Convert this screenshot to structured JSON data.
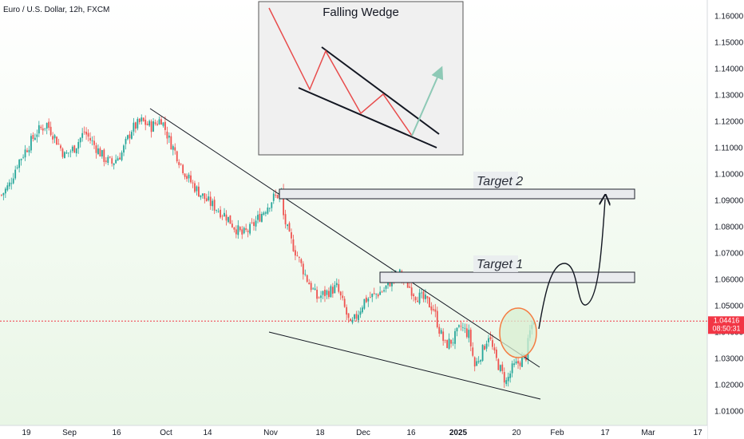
{
  "header": {
    "symbol_label": "Euro / U.S. Dollar, 12h, FXCM"
  },
  "colors": {
    "up": "#26a69a",
    "down": "#ef5350",
    "background_tint": "#eef7ec",
    "trendline": "#131722",
    "target_box_fill": "#e9ebee",
    "target_box_stroke": "#1e222d",
    "breakout_circle": "#f57c42",
    "breakout_fill": "#d8efd2",
    "price_line": "#f23645",
    "price_tag": "#f23645",
    "inset_bg": "#f0f0f0",
    "inset_zigzag": "#e84c4c",
    "inset_arrow": "#8ec9b6"
  },
  "chart_data": {
    "type": "candlestick",
    "title": "Euro / U.S. Dollar, 12h, FXCM",
    "ylim": [
      1.0,
      1.165
    ],
    "y_ticks": [
      "1.16000",
      "1.15000",
      "1.14000",
      "1.13000",
      "1.12000",
      "1.11000",
      "1.10000",
      "1.09000",
      "1.08000",
      "1.07000",
      "1.06000",
      "1.05000",
      "1.04000",
      "1.03000",
      "1.02000",
      "1.01000"
    ],
    "x_ticks": [
      {
        "label": "19",
        "bold": false
      },
      {
        "label": "Sep",
        "bold": false
      },
      {
        "label": "16",
        "bold": false
      },
      {
        "label": "Oct",
        "bold": false
      },
      {
        "label": "14",
        "bold": false
      },
      {
        "label": "Nov",
        "bold": false
      },
      {
        "label": "18",
        "bold": false
      },
      {
        "label": "Dec",
        "bold": false
      },
      {
        "label": "16",
        "bold": false
      },
      {
        "label": "2025",
        "bold": true
      },
      {
        "label": "20",
        "bold": false
      },
      {
        "label": "Feb",
        "bold": false
      },
      {
        "label": "17",
        "bold": false
      },
      {
        "label": "Mar",
        "bold": false
      },
      {
        "label": "17",
        "bold": false
      }
    ],
    "last_price": "1.04416",
    "countdown": "08:50:31",
    "close_path": [
      [
        0,
        1.092
      ],
      [
        4,
        1.096
      ],
      [
        8,
        1.104
      ],
      [
        13,
        1.11
      ],
      [
        18,
        1.116
      ],
      [
        23,
        1.119
      ],
      [
        27,
        1.114
      ],
      [
        32,
        1.107
      ],
      [
        37,
        1.11
      ],
      [
        42,
        1.116
      ],
      [
        47,
        1.111
      ],
      [
        52,
        1.106
      ],
      [
        56,
        1.104
      ],
      [
        61,
        1.108
      ],
      [
        66,
        1.117
      ],
      [
        71,
        1.12
      ],
      [
        76,
        1.118
      ],
      [
        81,
        1.121
      ],
      [
        85,
        1.113
      ],
      [
        89,
        1.107
      ],
      [
        94,
        1.099
      ],
      [
        99,
        1.094
      ],
      [
        104,
        1.09
      ],
      [
        109,
        1.087
      ],
      [
        114,
        1.084
      ],
      [
        118,
        1.08
      ],
      [
        122,
        1.077
      ],
      [
        126,
        1.079
      ],
      [
        130,
        1.083
      ],
      [
        134,
        1.087
      ],
      [
        138,
        1.091
      ],
      [
        142,
        1.093
      ],
      [
        143,
        1.084
      ],
      [
        146,
        1.076
      ],
      [
        150,
        1.069
      ],
      [
        155,
        1.06
      ],
      [
        160,
        1.053
      ],
      [
        165,
        1.055
      ],
      [
        170,
        1.057
      ],
      [
        174,
        1.049
      ],
      [
        177,
        1.042
      ],
      [
        180,
        1.046
      ],
      [
        184,
        1.052
      ],
      [
        189,
        1.054
      ],
      [
        194,
        1.056
      ],
      [
        198,
        1.06
      ],
      [
        202,
        1.062
      ],
      [
        206,
        1.058
      ],
      [
        210,
        1.054
      ],
      [
        215,
        1.052
      ],
      [
        219,
        1.049
      ],
      [
        222,
        1.041
      ],
      [
        225,
        1.035
      ],
      [
        229,
        1.037
      ],
      [
        233,
        1.042
      ],
      [
        237,
        1.039
      ],
      [
        240,
        1.027
      ],
      [
        244,
        1.033
      ],
      [
        247,
        1.039
      ],
      [
        250,
        1.031
      ],
      [
        254,
        1.024
      ],
      [
        256,
        1.021
      ],
      [
        259,
        1.026
      ],
      [
        263,
        1.029
      ],
      [
        266,
        1.031
      ],
      [
        268,
        1.04
      ],
      [
        270,
        1.045
      ]
    ],
    "series_note_text": "",
    "annotations": [
      {
        "text": "Target 1",
        "zone": [
          1.059,
          1.063
        ]
      },
      {
        "text": "Target 2",
        "zone": [
          1.091,
          1.094
        ]
      }
    ],
    "pattern_inset_title": "Falling Wedge"
  }
}
